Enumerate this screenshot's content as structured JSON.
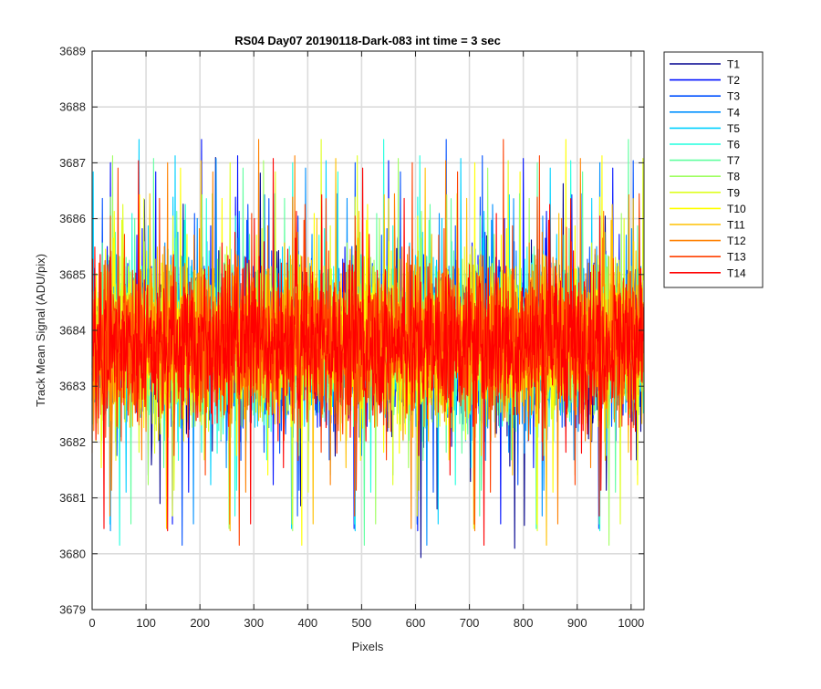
{
  "chart_data": {
    "type": "line",
    "title": "RS04 Day07 20190118-Dark-083 int time = 3 sec",
    "xlabel": "Pixels",
    "ylabel": "Track Mean Signal (ADU/pix)",
    "xlim": [
      0,
      1024
    ],
    "ylim": [
      3679,
      3689
    ],
    "xticks": [
      0,
      100,
      200,
      300,
      400,
      500,
      600,
      700,
      800,
      900,
      1000
    ],
    "yticks": [
      3679,
      3680,
      3681,
      3682,
      3683,
      3684,
      3685,
      3686,
      3687,
      3688,
      3689
    ],
    "grid": true,
    "legend_position": "outside-top-right",
    "noise": {
      "n_points": 1024,
      "mean": 3683.8,
      "spread": 2.4,
      "description_note": ""
    },
    "series": [
      {
        "name": "T1",
        "color": "#00008f"
      },
      {
        "name": "T2",
        "color": "#0010ff"
      },
      {
        "name": "T3",
        "color": "#0050ff"
      },
      {
        "name": "T4",
        "color": "#0090ff"
      },
      {
        "name": "T5",
        "color": "#00d0ff"
      },
      {
        "name": "T6",
        "color": "#20ffdf"
      },
      {
        "name": "T7",
        "color": "#60ff9f"
      },
      {
        "name": "T8",
        "color": "#9fff60"
      },
      {
        "name": "T9",
        "color": "#dfff20"
      },
      {
        "name": "T10",
        "color": "#ffff00"
      },
      {
        "name": "T11",
        "color": "#ffc000"
      },
      {
        "name": "T12",
        "color": "#ff8000"
      },
      {
        "name": "T13",
        "color": "#ff4000"
      },
      {
        "name": "T14",
        "color": "#ff0000"
      }
    ]
  }
}
